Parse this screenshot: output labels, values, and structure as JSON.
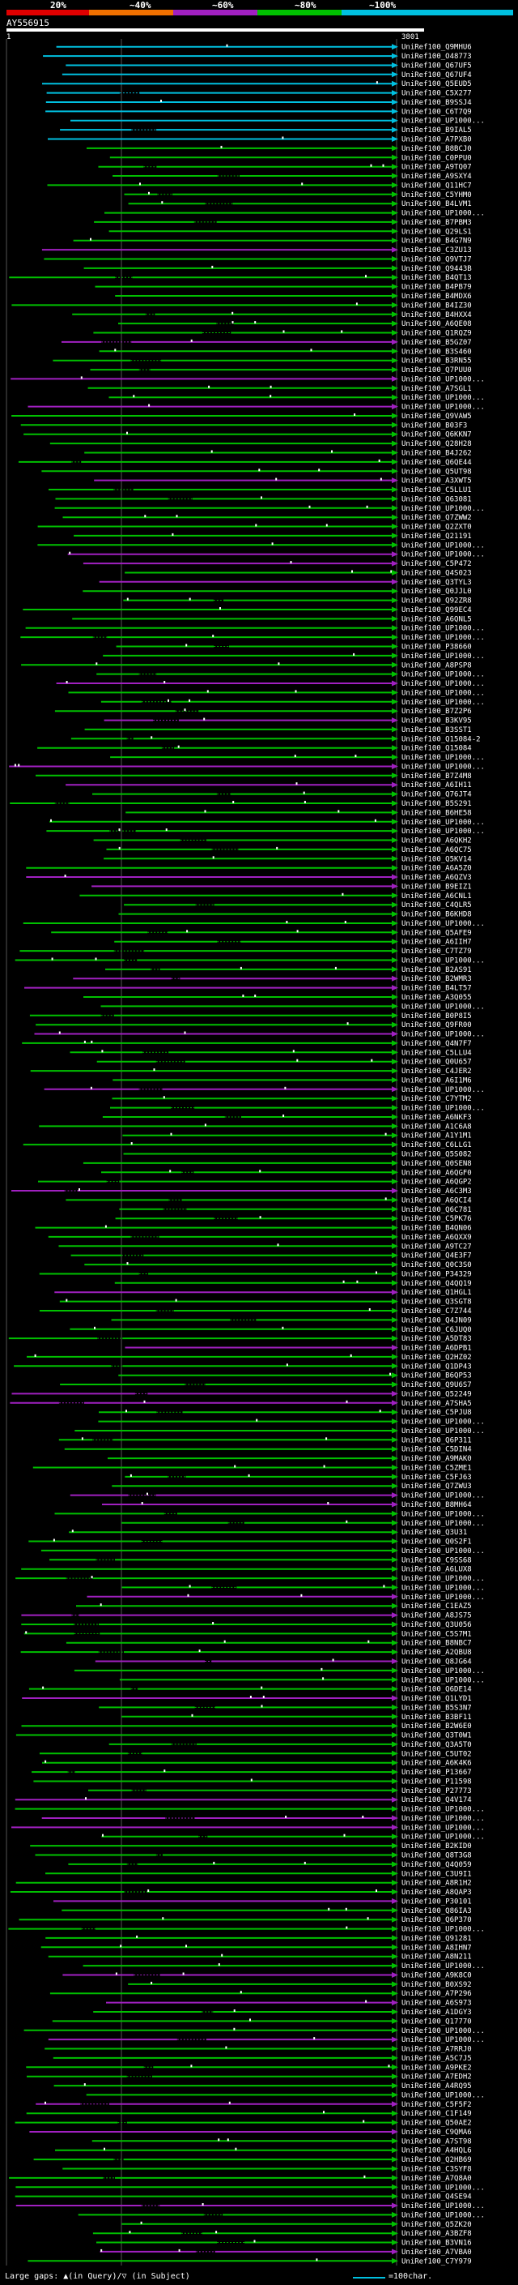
{
  "score_scale": {
    "labels": [
      "20%",
      "~40%",
      "~60%",
      "~80%",
      "~100%"
    ],
    "colors": [
      "#e00000",
      "#f07000",
      "#a020c0",
      "#00c000",
      "#00c0e0"
    ]
  },
  "query": {
    "name": "AY556915",
    "start": "1",
    "end": "3801"
  },
  "hits": [
    "UniRef100_Q9MHU6",
    "UniRef100_O48773",
    "UniRef100_Q67UF5",
    "UniRef100_Q67UF4",
    "UniRef100_Q5EUD5",
    "UniRef100_C5X277",
    "UniRef100_B9SSJ4",
    "UniRef100_C6T7Q9",
    "UniRef100_UP1000...",
    "UniRef100_B9IAL5",
    "UniRef100_A7PXB0",
    "UniRef100_B8BCJ0",
    "UniRef100_C0PPU0",
    "UniRef100_A9TQ07",
    "UniRef100_A9SXY4",
    "UniRef100_Q11HC7",
    "UniRef100_C5YHM0",
    "UniRef100_B4LVM1",
    "UniRef100_UP1000...",
    "UniRef100_B7PBM3",
    "UniRef100_Q29LS1",
    "UniRef100_B4G7N9",
    "UniRef100_C3ZU13",
    "UniRef100_Q9VTJ7",
    "UniRef100_Q9443B",
    "UniRef100_B4QT13",
    "UniRef100_B4PB79",
    "UniRef100_B4MDX6",
    "UniRef100_B4IZ30",
    "UniRef100_B4HXX4",
    "UniRef100_A6QE08",
    "UniRef100_Q1RQZ9",
    "UniRef100_B5GZ07",
    "UniRef100_B3S460",
    "UniRef100_B3RN55",
    "UniRef100_Q7PUU0",
    "UniRef100_UP1000...",
    "UniRef100_A7SGL1",
    "UniRef100_UP1000...",
    "UniRef100_UP1000...",
    "UniRef100_Q9VAW5",
    "UniRef100_B03F3",
    "UniRef100_Q6KKN7",
    "UniRef100_Q28H28",
    "UniRef100_B4J262",
    "UniRef100_Q6QE44",
    "UniRef100_Q5UT98",
    "UniRef100_A3XWT5",
    "UniRef100_C5LLU1",
    "UniRef100_Q63081",
    "UniRef100_UP1000...",
    "UniRef100_Q7ZWW2",
    "UniRef100_Q2ZXT0",
    "UniRef100_Q21191",
    "UniRef100_UP1000...",
    "UniRef100_UP1000...",
    "UniRef100_C5P472",
    "UniRef100_Q4S023",
    "UniRef100_Q3TYL3",
    "UniRef100_Q0JJL0",
    "UniRef100_Q92ZR8",
    "UniRef100_Q99EC4",
    "UniRef100_A6QNL5",
    "UniRef100_UP1000...",
    "UniRef100_UP1000...",
    "UniRef100_P38660",
    "UniRef100_UP1000...",
    "UniRef100_A8PSP8",
    "UniRef100_UP1000...",
    "UniRef100_UP1000...",
    "UniRef100_UP1000...",
    "UniRef100_UP1000...",
    "UniRef100_B7Z2P6",
    "UniRef100_B3KV95",
    "UniRef100_B3SST1",
    "UniRef100_Q15084-2",
    "UniRef100_Q15084",
    "UniRef100_UP1000...",
    "UniRef100_UP1000...",
    "UniRef100_B7Z4M8",
    "UniRef100_A6IH11",
    "UniRef100_Q76JT4",
    "UniRef100_B5S291",
    "UniRef100_B6HE58",
    "UniRef100_UP1000...",
    "UniRef100_UP1000...",
    "UniRef100_A6QKH2",
    "UniRef100_A6QC75",
    "UniRef100_Q5KV14",
    "UniRef100_A6A5Z0",
    "UniRef100_A6QZV3",
    "UniRef100_B9EIZ1",
    "UniRef100_A6CNL1",
    "UniRef100_C4QLR5",
    "UniRef100_B6KHD8",
    "UniRef100_UP1000...",
    "UniRef100_Q5AFE9",
    "UniRef100_A6IIH7",
    "UniRef100_C7TZ79",
    "UniRef100_UP1000...",
    "UniRef100_B2AS91",
    "UniRef100_B2WMR3",
    "UniRef100_B4LT57",
    "UniRef100_A3Q055",
    "UniRef100_UP1000...",
    "UniRef100_B0P8I5",
    "UniRef100_Q9FR00",
    "UniRef100_UP1000...",
    "UniRef100_Q4N7F7",
    "UniRef100_C5LLU4",
    "UniRef100_Q0U657",
    "UniRef100_C4JER2",
    "UniRef100_A6I1M6",
    "UniRef100_UP1000...",
    "UniRef100_C7YTM2",
    "UniRef100_UP1000...",
    "UniRef100_A6NKF3",
    "UniRef100_A1C6A8",
    "UniRef100_A1Y1M1",
    "UniRef100_C6LLG1",
    "UniRef100_Q5S082",
    "UniRef100_Q0SEN8",
    "UniRef100_A6QGF0",
    "UniRef100_A6QGP2",
    "UniRef100_A6C3M3",
    "UniRef100_A6QCI4",
    "UniRef100_Q6C781",
    "UniRef100_C5PK76",
    "UniRef100_B4QN06",
    "UniRef100_A6QXX9",
    "UniRef100_A9TC27",
    "UniRef100_Q4E3F7",
    "UniRef100_Q0C3S0",
    "UniRef100_P34329",
    "UniRef100_Q4QQ19",
    "UniRef100_Q1HGL1",
    "UniRef100_Q3SGT8",
    "UniRef100_C7Z744",
    "UniRef100_Q4JN09",
    "UniRef100_C6JUQ0",
    "UniRef100_A5DT83",
    "UniRef100_A6DPB1",
    "UniRef100_Q2HZ02",
    "UniRef100_Q1DP43",
    "UniRef100_B6QP53",
    "UniRef100_Q9U6S7",
    "UniRef100_Q52249",
    "UniRef100_A7SHA5",
    "UniRef100_C5PJU8",
    "UniRef100_UP1000...",
    "UniRef100_UP1000...",
    "UniRef100_Q6P311",
    "UniRef100_C5DIN4",
    "UniRef100_A9MAK0",
    "UniRef100_C5ZME1",
    "UniRef100_C5FJ63",
    "UniRef100_Q7ZWU3",
    "UniRef100_UP1000...",
    "UniRef100_B8MH64",
    "UniRef100_UP1000...",
    "UniRef100_UP1000...",
    "UniRef100_Q3U31",
    "UniRef100_Q0S2F1",
    "UniRef100_UP1000...",
    "UniRef100_C9SS68",
    "UniRef100_A6LUX8",
    "UniRef100_UP1000...",
    "UniRef100_UP1000...",
    "UniRef100_UP1000...",
    "UniRef100_C1EAZ5",
    "UniRef100_A8JS75",
    "UniRef100_Q3U056",
    "UniRef100_C5S7M1",
    "UniRef100_B8NBC7",
    "UniRef100_A2QBU8",
    "UniRef100_Q8JG64",
    "UniRef100_UP1000...",
    "UniRef100_UP1000...",
    "UniRef100_Q6DE14",
    "UniRef100_Q1LYD1",
    "UniRef100_B5S3N7",
    "UniRef100_B3BF11",
    "UniRef100_B2W6E0",
    "UniRef100_Q3T0W1",
    "UniRef100_Q3A5T0",
    "UniRef100_C5UT02",
    "UniRef100_A6K4K6",
    "UniRef100_P13667",
    "UniRef100_P11598",
    "UniRef100_P27773",
    "UniRef100_Q4V174",
    "UniRef100_UP1000...",
    "UniRef100_UP1000...",
    "UniRef100_UP1000...",
    "UniRef100_UP1000...",
    "UniRef100_B2KID0",
    "UniRef100_Q8T3G8",
    "UniRef100_Q4Q059",
    "UniRef100_C3U9I1",
    "UniRef100_A8R1H2",
    "UniRef100_A8QAP3",
    "UniRef100_P30101",
    "UniRef100_Q86IA3",
    "UniRef100_Q6P370",
    "UniRef100_UP1000...",
    "UniRef100_Q91281",
    "UniRef100_A8IHN7",
    "UniRef100_A8N211",
    "UniRef100_UP1000...",
    "UniRef100_A9K8C0",
    "UniRef100_B0XS92",
    "UniRef100_A7P296",
    "UniRef100_A6S973",
    "UniRef100_A1DGY3",
    "UniRef100_Q17770",
    "UniRef100_UP1000...",
    "UniRef100_UP1000...",
    "UniRef100_A7RRJ0",
    "UniRef100_A5C7J5",
    "UniRef100_A9PKE2",
    "UniRef100_A7EDH2",
    "UniRef100_A4RQ95",
    "UniRef100_UP1000...",
    "UniRef100_C5F5F2",
    "UniRef100_C1F149",
    "UniRef100_Q50AE2",
    "UniRef100_C9QMA6",
    "UniRef100_A7ST98",
    "UniRef100_A4HQL6",
    "UniRef100_Q2HB69",
    "UniRef100_C3SYF8",
    "UniRef100_A7Q8A0",
    "UniRef100_UP1000...",
    "UniRef100_Q4SE94",
    "UniRef100_UP1000...",
    "UniRef100_UP1000...",
    "UniRef100_Q5ZK20",
    "UniRef100_A3BZF8",
    "UniRef100_B3VN16",
    "UniRef100_A7VBA0",
    "UniRef100_C7Y979"
  ],
  "footer": {
    "gaps_text": "Large gaps: ▲(in Query)/▽ (in Subject)",
    "legend_text": "=100char."
  }
}
